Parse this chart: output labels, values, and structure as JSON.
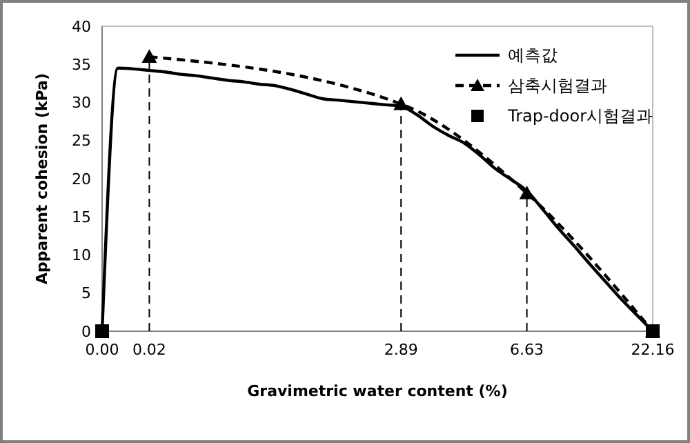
{
  "chart_data": {
    "type": "line",
    "xlabel": "Gravimetric water content (%)",
    "ylabel": "Apparent cohesion (kPa)",
    "categories": [
      "0.00",
      null,
      null,
      "0.02",
      null,
      null,
      null,
      null,
      null,
      null,
      null,
      null,
      null,
      null,
      null,
      null,
      null,
      null,
      null,
      "2.89",
      null,
      null,
      null,
      null,
      null,
      null,
      null,
      "6.63",
      null,
      null,
      null,
      null,
      null,
      null,
      null,
      "22.16"
    ],
    "ylim": [
      0,
      40
    ],
    "yticks": [
      0,
      5,
      10,
      15,
      20,
      25,
      30,
      35,
      40
    ],
    "grid": false,
    "legend": "top right",
    "series": [
      {
        "name": "예측값",
        "color": "#000000",
        "marker": "none",
        "line_style": "solid",
        "values": [
          0,
          34.5,
          34.4,
          34.2,
          34.0,
          33.7,
          33.5,
          33.2,
          32.9,
          32.7,
          32.4,
          32.2,
          31.7,
          31.1,
          30.5,
          30.3,
          30.1,
          29.9,
          29.7,
          29.5,
          28.4,
          26.9,
          25.7,
          24.7,
          23.1,
          21.3,
          19.9,
          18.4,
          16.0,
          13.5,
          11.2,
          8.8,
          6.5,
          4.2,
          2.1,
          0
        ]
      },
      {
        "name": "삼축시험결과",
        "color": "#000000",
        "marker": "triangle",
        "line_style": "dashed",
        "values": [
          null,
          null,
          null,
          36,
          null,
          null,
          null,
          null,
          null,
          null,
          null,
          null,
          null,
          null,
          null,
          null,
          null,
          null,
          null,
          29.8,
          null,
          null,
          null,
          null,
          null,
          null,
          null,
          18.1,
          null,
          null,
          null,
          null,
          null,
          null,
          null,
          0
        ]
      },
      {
        "name": "Trap-door시험결과",
        "type": "scatter",
        "color": "#000000",
        "marker": "square",
        "values": [
          0,
          null,
          null,
          null,
          null,
          null,
          null,
          null,
          null,
          null,
          null,
          null,
          null,
          null,
          null,
          null,
          null,
          null,
          null,
          null,
          null,
          null,
          null,
          null,
          null,
          null,
          null,
          null,
          null,
          null,
          null,
          null,
          null,
          null,
          null,
          0
        ]
      }
    ],
    "ref_lines": [
      {
        "axis": "x",
        "value": "0.02",
        "line_style": "dashed",
        "color": "#000000"
      },
      {
        "axis": "x",
        "value": "2.89",
        "line_style": "dashed",
        "color": "#000000"
      },
      {
        "axis": "x",
        "value": "6.63",
        "line_style": "dashed",
        "color": "#000000"
      }
    ]
  }
}
